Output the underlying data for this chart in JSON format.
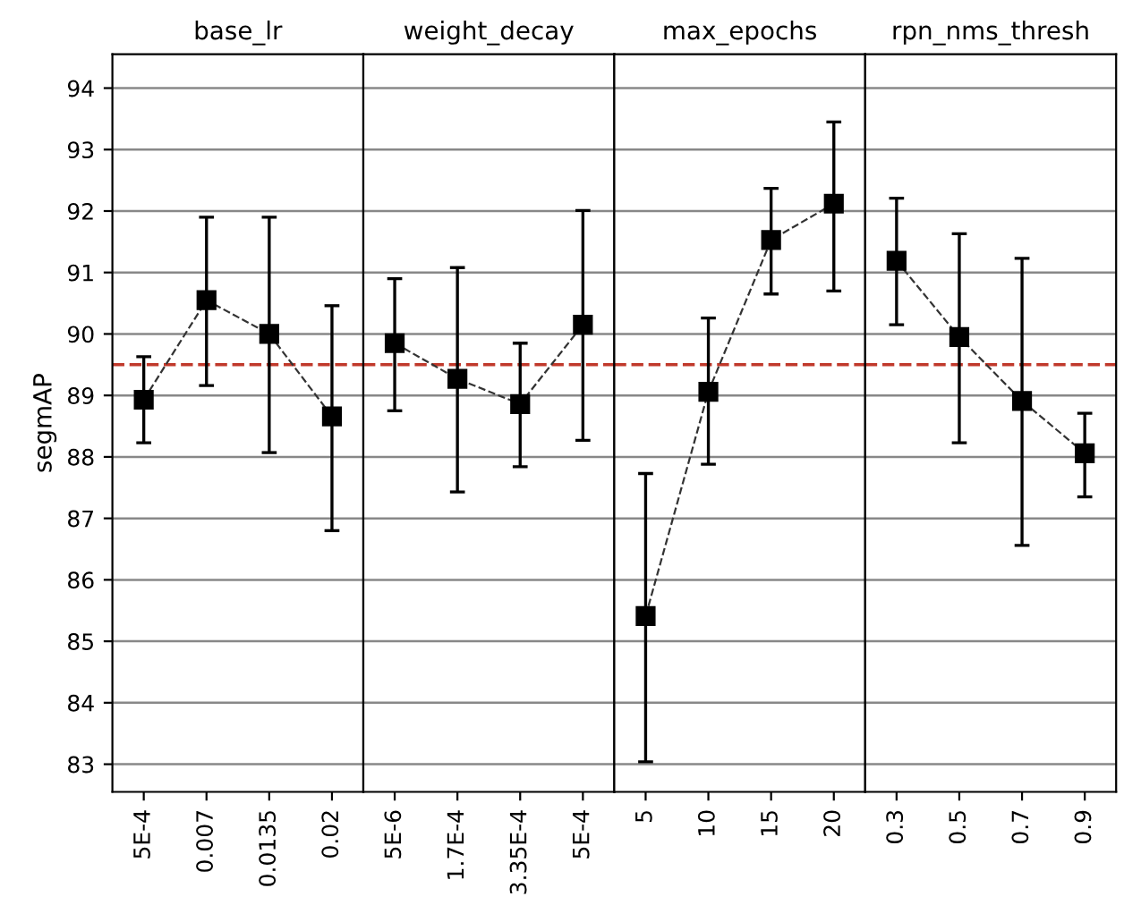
{
  "chart_data": [
    {
      "type": "line",
      "title": "base_lr",
      "ylabel": "segmAP",
      "categories": [
        "5E-4",
        "0.007",
        "0.0135",
        "0.02"
      ],
      "ylim": [
        82.55,
        94.55
      ],
      "yticks": [
        83,
        84,
        85,
        86,
        87,
        88,
        89,
        90,
        91,
        92,
        93,
        94
      ],
      "grid": "y",
      "marker": "square",
      "line_style": "dashed",
      "series": [
        {
          "color": "#000000",
          "values": [
            88.93,
            90.55,
            90.0,
            88.66
          ],
          "errors": [
            [
              88.23,
              89.63
            ],
            [
              89.16,
              91.9
            ],
            [
              88.07,
              91.9
            ],
            [
              86.8,
              90.46
            ]
          ]
        }
      ],
      "ref_lines": [
        {
          "axis": "y",
          "value": 89.5,
          "color": "#c0392b",
          "line_style": "dashed"
        }
      ]
    },
    {
      "type": "line",
      "title": "weight_decay",
      "categories": [
        "5E-6",
        "1.7E-4",
        "3.35E-4",
        "5E-4"
      ],
      "ylim": [
        82.55,
        94.55
      ],
      "tick_labels": "x",
      "grid": "y",
      "marker": "square",
      "line_style": "dashed",
      "series": [
        {
          "color": "#000000",
          "values": [
            89.85,
            89.27,
            88.86,
            90.15
          ],
          "errors": [
            [
              88.75,
              90.9
            ],
            [
              87.43,
              91.08
            ],
            [
              87.84,
              89.85
            ],
            [
              88.27,
              92.01
            ]
          ]
        }
      ],
      "ref_lines": [
        {
          "axis": "y",
          "value": 89.5,
          "color": "#c0392b",
          "line_style": "dashed"
        }
      ]
    },
    {
      "type": "line",
      "title": "max_epochs",
      "categories": [
        "5",
        "10",
        "15",
        "20"
      ],
      "ylim": [
        82.55,
        94.55
      ],
      "tick_labels": "x",
      "grid": "y",
      "marker": "square",
      "line_style": "dashed",
      "series": [
        {
          "color": "#000000",
          "values": [
            85.41,
            89.06,
            91.53,
            92.12
          ],
          "errors": [
            [
              83.04,
              87.73
            ],
            [
              87.88,
              90.26
            ],
            [
              90.65,
              92.37
            ],
            [
              90.7,
              93.45
            ]
          ]
        }
      ],
      "ref_lines": [
        {
          "axis": "y",
          "value": 89.5,
          "color": "#c0392b",
          "line_style": "dashed"
        }
      ]
    },
    {
      "type": "line",
      "title": "rpn_nms_thresh",
      "categories": [
        "0.3",
        "0.5",
        "0.7",
        "0.9"
      ],
      "ylim": [
        82.55,
        94.55
      ],
      "tick_labels": "x",
      "grid": "y",
      "marker": "square",
      "line_style": "dashed",
      "series": [
        {
          "color": "#000000",
          "values": [
            91.19,
            89.95,
            88.91,
            88.06
          ],
          "errors": [
            [
              90.15,
              92.21
            ],
            [
              88.23,
              91.63
            ],
            [
              86.56,
              91.23
            ],
            [
              87.35,
              88.71
            ]
          ]
        }
      ],
      "ref_lines": [
        {
          "axis": "y",
          "value": 89.5,
          "color": "#c0392b",
          "line_style": "dashed"
        }
      ]
    }
  ]
}
